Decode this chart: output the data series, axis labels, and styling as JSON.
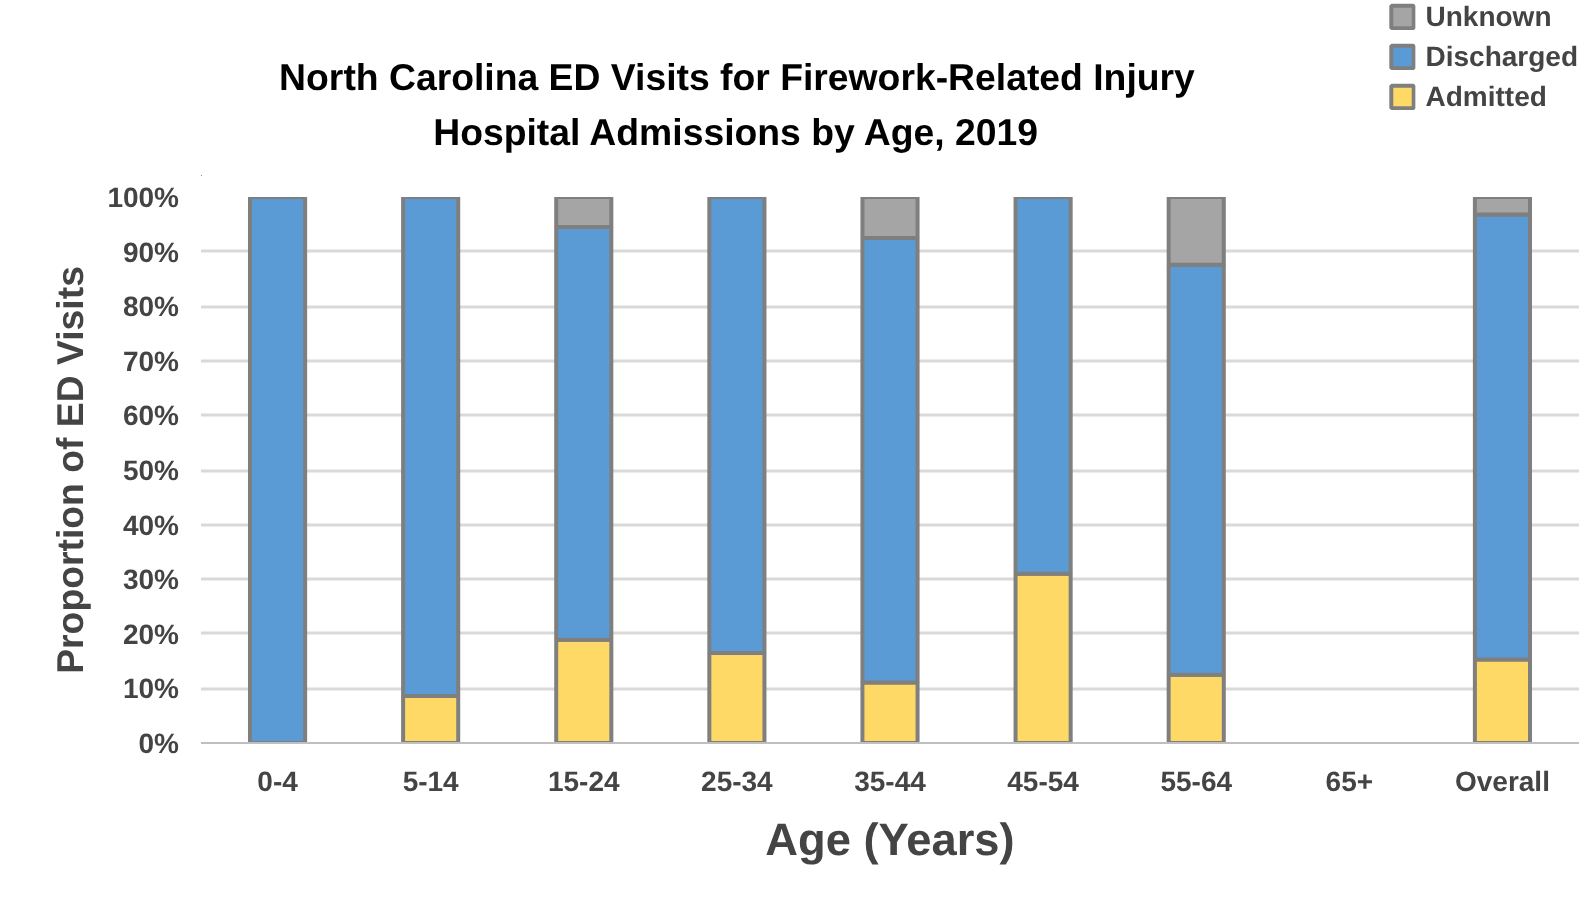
{
  "chart_data": {
    "type": "bar",
    "stacked": true,
    "title": "North Carolina ED Visits for Firework-Related Injury\nHospital Admissions by Age, 2019",
    "xlabel": "Age (Years)",
    "ylabel": "Proportion of ED Visits",
    "categories": [
      "0-4",
      "5-14",
      "15-24",
      "25-34",
      "35-44",
      "45-54",
      "55-64",
      "65+",
      "Overall"
    ],
    "series": [
      {
        "name": "Admitted",
        "color": "#ffd966",
        "values": [
          0,
          8.6,
          18.9,
          16.5,
          11.1,
          31.0,
          12.5,
          null,
          15.3
        ]
      },
      {
        "name": "Discharged",
        "color": "#5b9bd5",
        "values": [
          100,
          91.4,
          75.6,
          83.5,
          81.4,
          69.0,
          75.1,
          null,
          81.5
        ]
      },
      {
        "name": "Unknown",
        "color": "#a5a5a5",
        "values": [
          0,
          0,
          5.5,
          0,
          7.5,
          0,
          12.4,
          null,
          3.2
        ]
      }
    ],
    "ylim": [
      0,
      100
    ],
    "yticks": [
      {
        "value": 0,
        "label": "0%"
      },
      {
        "value": 10,
        "label": "10%"
      },
      {
        "value": 20,
        "label": "20%"
      },
      {
        "value": 30,
        "label": "30%"
      },
      {
        "value": 40,
        "label": "40%"
      },
      {
        "value": 50,
        "label": "50%"
      },
      {
        "value": 60,
        "label": "60%"
      },
      {
        "value": 70,
        "label": "70%"
      },
      {
        "value": 80,
        "label": "80%"
      },
      {
        "value": 90,
        "label": "90%"
      },
      {
        "value": 100,
        "label": "100%"
      }
    ],
    "grid": "y",
    "legend": "top right"
  }
}
